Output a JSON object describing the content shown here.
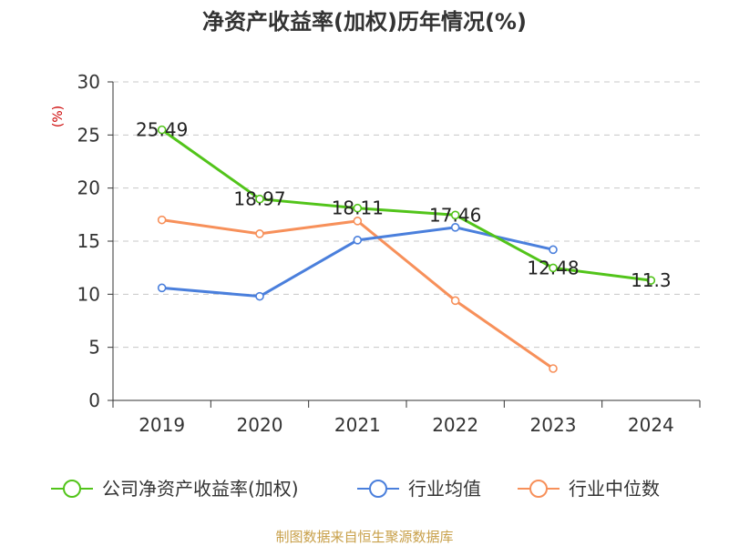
{
  "title": "净资产收益率(加权)历年情况(%)",
  "source": "制图数据来自恒生聚源数据库",
  "chart_data": {
    "type": "line",
    "title": "净资产收益率(加权)历年情况(%)",
    "ylabel": "(%)",
    "xlabel": "",
    "categories": [
      "2019",
      "2020",
      "2021",
      "2022",
      "2023",
      "2024"
    ],
    "ylim": [
      0,
      30
    ],
    "yticks": [
      0,
      5,
      10,
      15,
      20,
      25,
      30
    ],
    "grid": true,
    "legend_position": "bottom",
    "series": [
      {
        "name": "公司净资产收益率(加权)",
        "color": "#52c41a",
        "values": [
          25.49,
          18.97,
          18.11,
          17.46,
          12.48,
          11.3
        ],
        "labels": [
          "25.49",
          "18.97",
          "18.11",
          "17.46",
          "12.48",
          "11.3"
        ],
        "show_labels": true
      },
      {
        "name": "行业均值",
        "color": "#4a7fdc",
        "values": [
          10.6,
          9.8,
          15.1,
          16.3,
          14.2,
          null
        ],
        "show_labels": false
      },
      {
        "name": "行业中位数",
        "color": "#f7905a",
        "values": [
          17.0,
          15.7,
          16.9,
          9.4,
          3.0,
          null
        ],
        "show_labels": false
      }
    ]
  }
}
